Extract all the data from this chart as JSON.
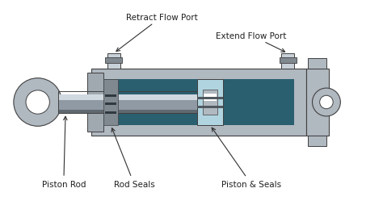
{
  "bg_color": "#ffffff",
  "figsize": [
    4.74,
    2.55
  ],
  "dpi": 100,
  "labels": {
    "retract_flow_port": "Retract Flow Port",
    "extend_flow_port": "Extend Flow Port",
    "piston_rod": "Piston Rod",
    "rod_seals": "Rod Seals",
    "piston_seals": "Piston & Seals"
  },
  "colors": {
    "cylinder_body": "#b0b8c0",
    "cylinder_dark": "#808890",
    "piston_rod_shine": "#d0d8e0",
    "piston_rod_mid": "#909aa4",
    "piston_rod_dark": "#606870",
    "fluid_chamber": "#2a5f6f",
    "fluid_light": "#4a8fa0",
    "piston_body": "#8ab4c0",
    "piston_light": "#b0d4e0",
    "seal_dark": "#505860",
    "end_cap": "#a0a8b0",
    "clevis_body": "#b0b8c0",
    "clevis_dark": "#808890",
    "port_fitting": "#c8d0d8",
    "rod_eye_body": "#b0b8c0",
    "outline": "#404040",
    "arrow_color": "#303030",
    "text_color": "#202020"
  }
}
